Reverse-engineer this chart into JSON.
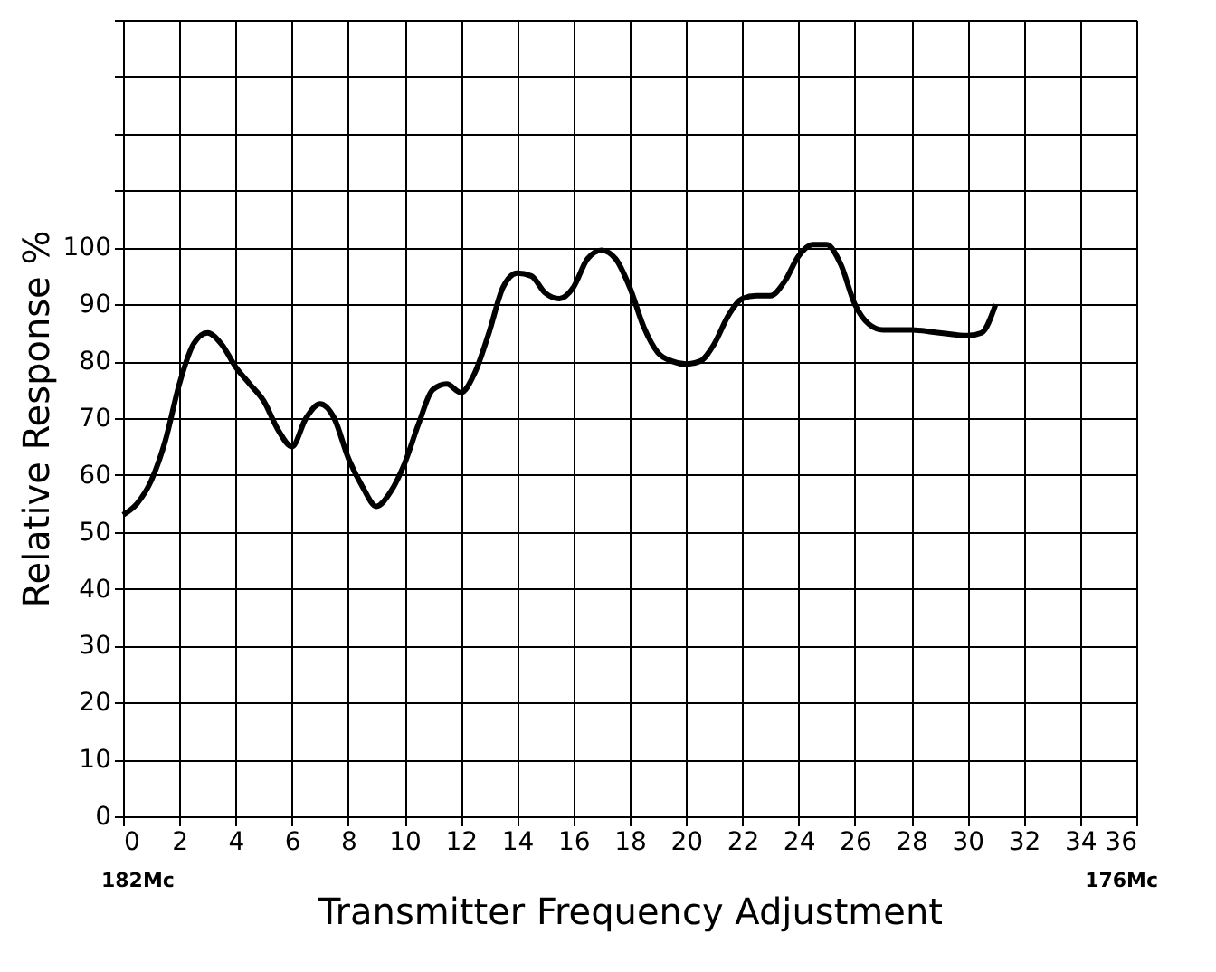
{
  "chart_data": {
    "type": "line",
    "xlabel": "Transmitter Frequency Adjustment",
    "ylabel": "Relative Response %",
    "x": [
      0,
      0.5,
      1,
      1.5,
      2,
      2.5,
      3,
      3.5,
      4,
      4.5,
      5,
      5.5,
      6,
      6.5,
      7,
      7.5,
      8,
      8.5,
      9,
      9.5,
      10,
      10.5,
      11,
      11.5,
      12,
      12.5,
      13,
      13.5,
      14,
      14.5,
      15,
      15.5,
      16,
      16.5,
      17,
      17.5,
      18,
      18.5,
      19,
      19.5,
      20,
      20.5,
      21,
      21.5,
      22,
      22.5,
      23,
      23.5,
      24,
      24.5,
      25,
      25.5,
      26,
      26.5,
      27,
      28,
      29,
      30,
      30.5,
      31
    ],
    "series": [
      {
        "color": "#000000",
        "values": [
          53,
          55,
          59,
          66,
          76,
          83,
          85,
          83,
          79,
          76,
          73,
          68,
          65,
          70,
          72.5,
          70,
          63,
          58,
          54.5,
          57,
          62,
          69,
          75,
          76,
          74.5,
          78,
          85,
          93,
          95.5,
          95,
          92,
          91,
          93,
          98,
          99.5,
          98,
          93,
          86,
          81.5,
          80,
          79.5,
          80,
          83,
          88,
          91,
          91.5,
          91.5,
          94,
          98.5,
          100.5,
          100.5,
          97,
          90,
          86.5,
          85.5,
          85.5,
          85,
          84.5,
          85,
          90
        ]
      }
    ],
    "xlim": [
      0,
      36
    ],
    "xticks": [
      0,
      2,
      4,
      6,
      8,
      10,
      12,
      14,
      16,
      18,
      20,
      22,
      24,
      26,
      28,
      30,
      32,
      34,
      36
    ],
    "ylim": [
      0,
      140
    ],
    "yticks": [
      0,
      10,
      20,
      30,
      40,
      50,
      60,
      70,
      80,
      90,
      100,
      {
        "value": 110,
        "label": null
      },
      {
        "value": 120,
        "label": null
      },
      {
        "value": 130,
        "label": null
      },
      {
        "value": 140,
        "label": null
      }
    ],
    "grid": true,
    "marker": "none",
    "line_style": "solid",
    "annotations": [
      "182Mc",
      "176Mc"
    ]
  }
}
